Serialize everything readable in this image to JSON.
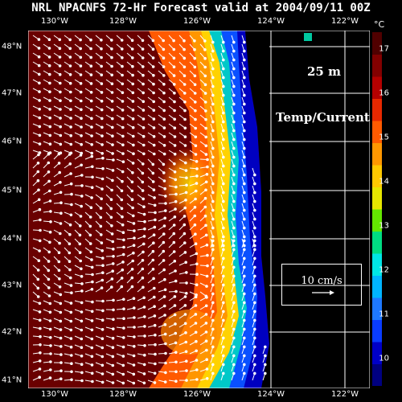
{
  "title": "NRL NPACNFS 72-Hr Forecast valid at 2004/09/11 00Z",
  "depth_label": "25 m",
  "field_label": "Temp/Current",
  "scale_label": "10 cm/s",
  "unit": "°C",
  "lon_labels": [
    "130°W",
    "128°W",
    "126°W",
    "124°W",
    "122°W"
  ],
  "lat_labels": [
    "48°N",
    "47°N",
    "46°N",
    "45°N",
    "44°N",
    "43°N",
    "42°N",
    "41°N"
  ],
  "colorbar": {
    "labels": [
      "17",
      "16",
      "15",
      "14",
      "13",
      "12",
      "11",
      "10"
    ],
    "colors": [
      "#000080",
      "#0000c8",
      "#0a3cff",
      "#1e78ff",
      "#00b4ff",
      "#00e6e6",
      "#00dc82",
      "#64e600",
      "#e6e600",
      "#ffc800",
      "#ff9600",
      "#ff5a00",
      "#e62800",
      "#b40000",
      "#820000",
      "#500000"
    ]
  },
  "colors": {
    "land": "#000000",
    "grid": "#ffffff",
    "vectors": "#ffffff"
  }
}
